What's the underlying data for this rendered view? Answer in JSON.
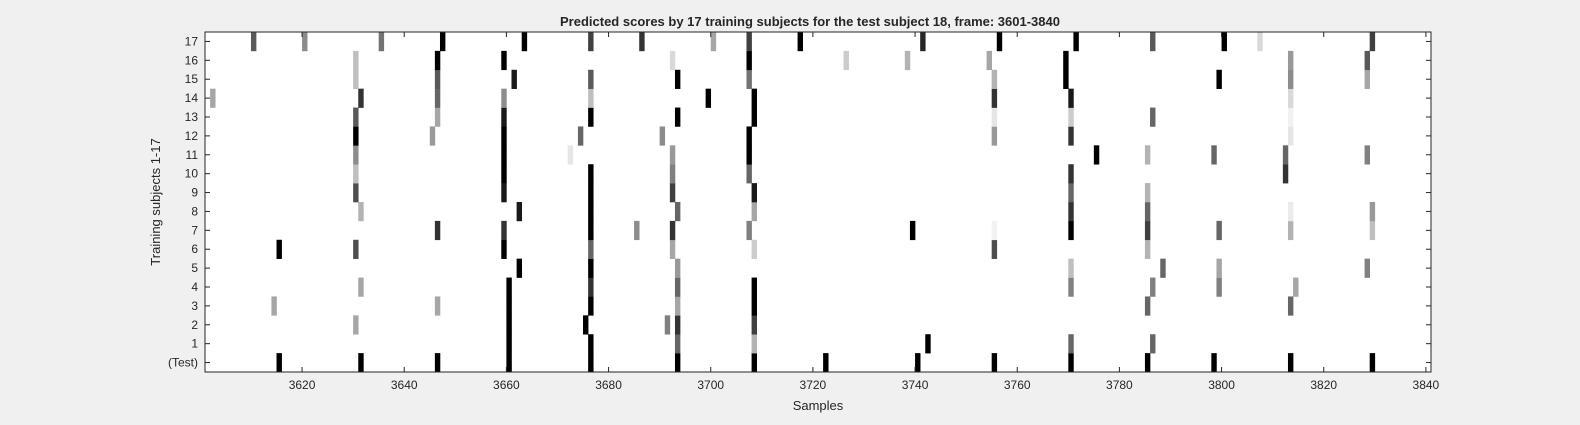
{
  "chart_data": {
    "type": "heatmap",
    "title": "Predicted scores by 17 training subjects for the test subject 18, frame: 3601-3840",
    "xlabel": "Samples",
    "ylabel": "Training subjects 1-17",
    "xlim": [
      3601,
      3840
    ],
    "x_ticks": [
      3620,
      3640,
      3660,
      3680,
      3700,
      3720,
      3740,
      3760,
      3780,
      3800,
      3820,
      3840
    ],
    "y_tick_labels": [
      "(Test)",
      "1",
      "2",
      "3",
      "4",
      "5",
      "6",
      "7",
      "8",
      "9",
      "10",
      "11",
      "12",
      "13",
      "14",
      "15",
      "16",
      "17"
    ],
    "colormap": "white-to-black (0 = white, 1 = black)",
    "background_color": "#f0f0f0",
    "axes_color": "#ffffff",
    "rows": [
      {
        "label": "(Test)",
        "marks": [
          [
            3615,
            1
          ],
          [
            3631,
            1
          ],
          [
            3646,
            1
          ],
          [
            3660,
            1
          ],
          [
            3676,
            1
          ],
          [
            3693,
            1
          ],
          [
            3708,
            1
          ],
          [
            3722,
            1
          ],
          [
            3740,
            1
          ],
          [
            3755,
            1
          ],
          [
            3770,
            1
          ],
          [
            3785,
            1
          ],
          [
            3798,
            1
          ],
          [
            3813,
            1
          ],
          [
            3829,
            1
          ]
        ]
      },
      {
        "label": "1",
        "marks": [
          [
            3660,
            1
          ],
          [
            3676,
            1
          ],
          [
            3693,
            0.6
          ],
          [
            3708,
            0.3
          ],
          [
            3742,
            1
          ],
          [
            3770,
            0.6
          ],
          [
            3786,
            0.6
          ]
        ]
      },
      {
        "label": "2",
        "marks": [
          [
            3630,
            0.35
          ],
          [
            3660,
            1
          ],
          [
            3675,
            1
          ],
          [
            3691,
            0.5
          ],
          [
            3693,
            0.8
          ],
          [
            3708,
            0.75
          ]
        ]
      },
      {
        "label": "3",
        "marks": [
          [
            3614,
            0.35
          ],
          [
            3646,
            0.35
          ],
          [
            3660,
            1
          ],
          [
            3676,
            1
          ],
          [
            3693,
            0.35
          ],
          [
            3708,
            1
          ],
          [
            3785,
            0.6
          ],
          [
            3813,
            0.6
          ]
        ]
      },
      {
        "label": "4",
        "marks": [
          [
            3631,
            0.35
          ],
          [
            3660,
            1
          ],
          [
            3676,
            0.8
          ],
          [
            3693,
            0.6
          ],
          [
            3708,
            1
          ],
          [
            3770,
            0.5
          ],
          [
            3786,
            0.5
          ],
          [
            3799,
            0.5
          ],
          [
            3814,
            0.35
          ]
        ]
      },
      {
        "label": "5",
        "marks": [
          [
            3662,
            1
          ],
          [
            3676,
            1
          ],
          [
            3693,
            0.4
          ],
          [
            3770,
            0.25
          ],
          [
            3788,
            0.6
          ],
          [
            3799,
            0.35
          ],
          [
            3828,
            0.5
          ]
        ]
      },
      {
        "label": "6",
        "marks": [
          [
            3615,
            1
          ],
          [
            3630,
            0.7
          ],
          [
            3659,
            1
          ],
          [
            3676,
            0.6
          ],
          [
            3692,
            0.35
          ],
          [
            3708,
            0.2
          ],
          [
            3755,
            0.7
          ],
          [
            3785,
            0.3
          ]
        ]
      },
      {
        "label": "7",
        "marks": [
          [
            3646,
            0.8
          ],
          [
            3659,
            0.8
          ],
          [
            3676,
            1
          ],
          [
            3685,
            0.45
          ],
          [
            3692,
            0.8
          ],
          [
            3707,
            0.5
          ],
          [
            3739,
            1
          ],
          [
            3755,
            0.05
          ],
          [
            3770,
            1
          ],
          [
            3785,
            0.75
          ],
          [
            3799,
            0.6
          ],
          [
            3813,
            0.3
          ],
          [
            3829,
            0.25
          ]
        ]
      },
      {
        "label": "8",
        "marks": [
          [
            3631,
            0.3
          ],
          [
            3662,
            0.9
          ],
          [
            3676,
            1
          ],
          [
            3693,
            0.6
          ],
          [
            3708,
            0.35
          ],
          [
            3770,
            0.8
          ],
          [
            3785,
            0.6
          ],
          [
            3813,
            0.08
          ],
          [
            3829,
            0.4
          ]
        ]
      },
      {
        "label": "9",
        "marks": [
          [
            3630,
            0.7
          ],
          [
            3659,
            0.9
          ],
          [
            3676,
            1
          ],
          [
            3692,
            0.75
          ],
          [
            3708,
            0.9
          ],
          [
            3770,
            0.6
          ],
          [
            3785,
            0.3
          ]
        ]
      },
      {
        "label": "10",
        "marks": [
          [
            3630,
            0.25
          ],
          [
            3659,
            1
          ],
          [
            3676,
            1
          ],
          [
            3692,
            0.5
          ],
          [
            3707,
            0.6
          ],
          [
            3770,
            0.8
          ],
          [
            3812,
            0.8
          ]
        ]
      },
      {
        "label": "11",
        "marks": [
          [
            3630,
            0.45
          ],
          [
            3659,
            1
          ],
          [
            3672,
            0.1
          ],
          [
            3692,
            0.4
          ],
          [
            3707,
            1
          ],
          [
            3775,
            1
          ],
          [
            3785,
            0.3
          ],
          [
            3798,
            0.6
          ],
          [
            3812,
            0.6
          ],
          [
            3828,
            0.5
          ]
        ]
      },
      {
        "label": "12",
        "marks": [
          [
            3630,
            1
          ],
          [
            3645,
            0.4
          ],
          [
            3659,
            1
          ],
          [
            3674,
            0.6
          ],
          [
            3690,
            0.45
          ],
          [
            3707,
            1
          ],
          [
            3755,
            0.4
          ],
          [
            3770,
            0.8
          ],
          [
            3813,
            0.1
          ]
        ]
      },
      {
        "label": "13",
        "marks": [
          [
            3630,
            0.65
          ],
          [
            3646,
            0.35
          ],
          [
            3659,
            0.9
          ],
          [
            3676,
            1
          ],
          [
            3693,
            1
          ],
          [
            3708,
            1
          ],
          [
            3755,
            0.1
          ],
          [
            3770,
            0.2
          ],
          [
            3786,
            0.6
          ],
          [
            3813,
            0.05
          ]
        ]
      },
      {
        "label": "14",
        "marks": [
          [
            3602,
            0.35
          ],
          [
            3631,
            0.8
          ],
          [
            3646,
            0.6
          ],
          [
            3659,
            0.45
          ],
          [
            3676,
            0.25
          ],
          [
            3699,
            1
          ],
          [
            3708,
            1
          ],
          [
            3755,
            0.8
          ],
          [
            3770,
            0.9
          ],
          [
            3813,
            0.15
          ]
        ]
      },
      {
        "label": "15",
        "marks": [
          [
            3630,
            0.25
          ],
          [
            3646,
            0.65
          ],
          [
            3661,
            0.9
          ],
          [
            3676,
            0.65
          ],
          [
            3693,
            1
          ],
          [
            3707,
            0.55
          ],
          [
            3755,
            0.3
          ],
          [
            3769,
            1
          ],
          [
            3799,
            1
          ],
          [
            3813,
            0.45
          ],
          [
            3828,
            0.35
          ]
        ]
      },
      {
        "label": "16",
        "marks": [
          [
            3630,
            0.25
          ],
          [
            3646,
            1
          ],
          [
            3659,
            1
          ],
          [
            3692,
            0.15
          ],
          [
            3707,
            1
          ],
          [
            3726,
            0.2
          ],
          [
            3738,
            0.3
          ],
          [
            3754,
            0.35
          ],
          [
            3769,
            1
          ],
          [
            3813,
            0.4
          ],
          [
            3828,
            0.65
          ]
        ]
      },
      {
        "label": "17",
        "marks": [
          [
            3610,
            0.65
          ],
          [
            3620,
            0.45
          ],
          [
            3635,
            0.55
          ],
          [
            3647,
            1
          ],
          [
            3663,
            1
          ],
          [
            3676,
            0.75
          ],
          [
            3686,
            0.8
          ],
          [
            3700,
            0.35
          ],
          [
            3707,
            0.75
          ],
          [
            3717,
            1
          ],
          [
            3741,
            0.85
          ],
          [
            3756,
            1
          ],
          [
            3771,
            1
          ],
          [
            3786,
            0.65
          ],
          [
            3800,
            1
          ],
          [
            3807,
            0.15
          ],
          [
            3829,
            0.75
          ]
        ]
      }
    ]
  }
}
